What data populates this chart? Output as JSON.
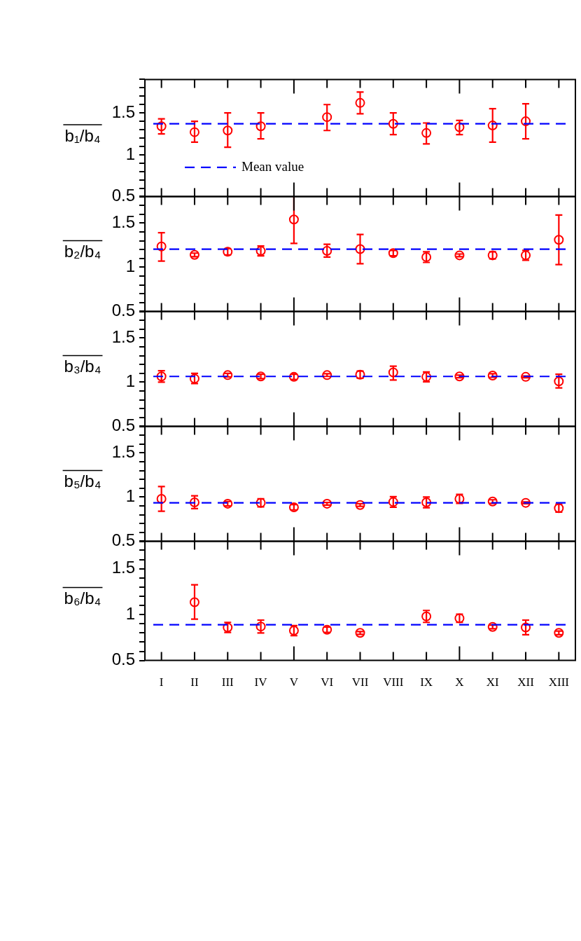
{
  "chart_data": [
    {
      "type": "scatter",
      "ylabel": "b₁/b₄",
      "categories": [
        null,
        null,
        null,
        null,
        null,
        null,
        null,
        null,
        null,
        null,
        null,
        null,
        null
      ],
      "series": [
        {
          "color": "#ff0000",
          "values": [
            1.34,
            1.27,
            1.29,
            1.34,
            null,
            1.45,
            1.62,
            1.37,
            1.26,
            1.33,
            1.35,
            1.4,
            null
          ],
          "errors": [
            [
              1.25,
              1.43
            ],
            [
              1.15,
              1.4
            ],
            [
              1.09,
              1.5
            ],
            [
              1.19,
              1.5
            ],
            null,
            [
              1.29,
              1.6
            ],
            [
              1.49,
              1.75
            ],
            [
              1.24,
              1.5
            ],
            [
              1.13,
              1.38
            ],
            [
              1.24,
              1.41
            ],
            [
              1.15,
              1.55
            ],
            [
              1.19,
              1.61
            ],
            null
          ]
        }
      ],
      "ylim": [
        0.5,
        1.9
      ],
      "yticks": [
        0.5,
        {
          "value": 0.6,
          "label": null
        },
        {
          "value": 0.7,
          "label": null
        },
        {
          "value": 0.8,
          "label": null
        },
        {
          "value": 0.9,
          "label": null
        },
        1,
        {
          "value": 1.1,
          "label": null
        },
        {
          "value": 1.2,
          "label": null
        },
        {
          "value": 1.3,
          "label": null
        },
        {
          "value": 1.4,
          "label": null
        },
        1.5,
        {
          "value": 1.6,
          "label": null
        },
        {
          "value": 1.7,
          "label": null
        },
        {
          "value": 1.8,
          "label": null
        },
        {
          "value": 1.9,
          "label": null
        }
      ],
      "marker": "circle",
      "tick_labels": "y",
      "ref_lines": [
        {
          "axis": "y",
          "value": 1.37,
          "label": "Mean value",
          "color": "#0000ff",
          "line_style": "dashed"
        }
      ]
    },
    {
      "type": "scatter",
      "ylabel": "b₂/b₄",
      "categories": [
        null,
        null,
        null,
        null,
        null,
        null,
        null,
        null,
        null,
        null,
        null,
        null,
        null
      ],
      "series": [
        {
          "color": "#ff0000",
          "values": [
            1.235,
            1.14,
            1.175,
            1.185,
            1.54,
            1.185,
            1.205,
            1.16,
            1.115,
            1.135,
            1.135,
            1.135,
            1.31
          ],
          "errors": [
            [
              1.07,
              1.39
            ],
            0.02,
            0.035,
            0.055,
            [
              1.27,
              1.8
            ],
            [
              1.115,
              1.26
            ],
            [
              1.04,
              1.37
            ],
            0.03,
            0.06,
            0.015,
            0.04,
            0.055,
            [
              1.03,
              1.59
            ]
          ]
        }
      ],
      "ylim": [
        0.5,
        1.8
      ],
      "yticks": [
        0.5,
        {
          "value": 0.6,
          "label": null
        },
        {
          "value": 0.7,
          "label": null
        },
        {
          "value": 0.8,
          "label": null
        },
        {
          "value": 0.9,
          "label": null
        },
        1,
        {
          "value": 1.1,
          "label": null
        },
        {
          "value": 1.2,
          "label": null
        },
        {
          "value": 1.3,
          "label": null
        },
        {
          "value": 1.4,
          "label": null
        },
        1.5,
        {
          "value": 1.6,
          "label": null
        },
        {
          "value": 1.7,
          "label": null
        },
        {
          "value": 1.8,
          "label": null
        }
      ],
      "marker": "circle",
      "tick_labels": "y",
      "ref_lines": [
        {
          "axis": "y",
          "value": 1.205,
          "color": "#0000ff",
          "line_style": "dashed"
        }
      ]
    },
    {
      "type": "scatter",
      "ylabel": "b₃/b₄",
      "categories": [
        null,
        null,
        null,
        null,
        null,
        null,
        null,
        null,
        null,
        null,
        null,
        null,
        null
      ],
      "series": [
        {
          "color": "#ff0000",
          "values": [
            1.065,
            1.04,
            1.08,
            1.065,
            1.06,
            1.08,
            1.085,
            1.11,
            1.06,
            1.065,
            1.075,
            1.06,
            1.01
          ],
          "errors": [
            [
              1.0,
              1.13
            ],
            [
              0.985,
              1.1
            ],
            0.02,
            0.025,
            0.03,
            0.015,
            0.04,
            [
              1.025,
              1.18
            ],
            0.055,
            0.015,
            0.02,
            0.01,
            [
              0.935,
              1.09
            ]
          ]
        }
      ],
      "ylim": [
        0.5,
        1.8
      ],
      "yticks": [
        0.5,
        {
          "value": 0.6,
          "label": null
        },
        {
          "value": 0.7,
          "label": null
        },
        {
          "value": 0.8,
          "label": null
        },
        {
          "value": 0.9,
          "label": null
        },
        1,
        {
          "value": 1.1,
          "label": null
        },
        {
          "value": 1.2,
          "label": null
        },
        {
          "value": 1.3,
          "label": null
        },
        {
          "value": 1.4,
          "label": null
        },
        1.5,
        {
          "value": 1.6,
          "label": null
        },
        {
          "value": 1.7,
          "label": null
        },
        {
          "value": 1.8,
          "label": null
        }
      ],
      "marker": "circle",
      "tick_labels": "y",
      "ref_lines": [
        {
          "axis": "y",
          "value": 1.065,
          "color": "#0000ff",
          "line_style": "dashed"
        }
      ]
    },
    {
      "type": "scatter",
      "ylabel": "b₅/b₄",
      "categories": [
        null,
        null,
        null,
        null,
        null,
        null,
        null,
        null,
        null,
        null,
        null,
        null,
        null
      ],
      "series": [
        {
          "color": "#ff0000",
          "values": [
            0.98,
            0.94,
            0.925,
            0.935,
            0.885,
            0.925,
            0.91,
            0.945,
            0.94,
            0.98,
            0.95,
            0.935,
            0.875
          ],
          "errors": [
            [
              0.84,
              1.12
            ],
            [
              0.87,
              1.015
            ],
            0.025,
            0.045,
            0.03,
            0.015,
            0.015,
            0.06,
            0.06,
            0.05,
            0.02,
            0.01,
            0.045
          ]
        }
      ],
      "ylim": [
        0.5,
        1.8
      ],
      "yticks": [
        0.5,
        {
          "value": 0.6,
          "label": null
        },
        {
          "value": 0.7,
          "label": null
        },
        {
          "value": 0.8,
          "label": null
        },
        {
          "value": 0.9,
          "label": null
        },
        1,
        {
          "value": 1.1,
          "label": null
        },
        {
          "value": 1.2,
          "label": null
        },
        {
          "value": 1.3,
          "label": null
        },
        {
          "value": 1.4,
          "label": null
        },
        1.5,
        {
          "value": 1.6,
          "label": null
        },
        {
          "value": 1.7,
          "label": null
        },
        {
          "value": 1.8,
          "label": null
        }
      ],
      "marker": "circle",
      "tick_labels": "y",
      "ref_lines": [
        {
          "axis": "y",
          "value": 0.935,
          "color": "#0000ff",
          "line_style": "dashed"
        }
      ]
    },
    {
      "type": "scatter",
      "ylabel": "b₆/b₄",
      "categories": [
        "I",
        "II",
        "III",
        "IV",
        "V",
        "VI",
        "VII",
        "VIII",
        "IX",
        "X",
        "XI",
        "XII",
        "XIII"
      ],
      "series": [
        {
          "color": "#ff0000",
          "values": [
            null,
            1.135,
            0.86,
            0.87,
            0.825,
            0.835,
            0.8,
            null,
            0.98,
            0.96,
            0.865,
            0.86,
            0.8
          ],
          "errors": [
            null,
            [
              0.95,
              1.325
            ],
            0.055,
            0.07,
            0.055,
            0.03,
            0.015,
            null,
            0.065,
            0.045,
            0.02,
            0.08,
            0.02
          ]
        }
      ],
      "ylim": [
        0.5,
        1.8
      ],
      "yticks": [
        0.5,
        {
          "value": 0.6,
          "label": null
        },
        {
          "value": 0.7,
          "label": null
        },
        {
          "value": 0.8,
          "label": null
        },
        {
          "value": 0.9,
          "label": null
        },
        1,
        {
          "value": 1.1,
          "label": null
        },
        {
          "value": 1.2,
          "label": null
        },
        {
          "value": 1.3,
          "label": null
        },
        {
          "value": 1.4,
          "label": null
        },
        1.5,
        {
          "value": 1.6,
          "label": null
        },
        {
          "value": 1.7,
          "label": null
        },
        {
          "value": 1.8,
          "label": null
        }
      ],
      "marker": "circle",
      "ref_lines": [
        {
          "axis": "y",
          "value": 0.89,
          "color": "#0000ff",
          "line_style": "dashed"
        }
      ]
    }
  ]
}
